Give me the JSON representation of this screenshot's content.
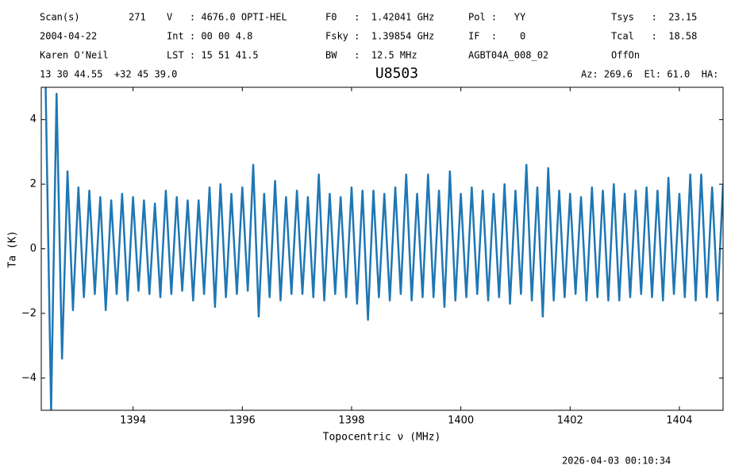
{
  "header": {
    "rows": [
      [
        "Scan(s)",
        "271",
        "V   : 4676.0 OPTI-HEL",
        "F0   :  1.42041 GHz",
        "Pol :   YY",
        "Tsys   :  23.15"
      ],
      [
        "2004-04-22",
        "Int : 00 00 4.8",
        "Fsky :  1.39854 GHz",
        "IF  :    0",
        "Tcal   :  18.58"
      ],
      [
        "Karen O'Neil",
        "LST : 15 51 41.5",
        "BW   :  12.5 MHz",
        "AGBT04A_008_02",
        "OffOn"
      ],
      [
        "13 30 44.55  +32 45 39.0",
        "Az: 269.6  El: 61.0  HA:"
      ]
    ],
    "timestamp": "2026-04-03 00:10:34"
  },
  "chart_data": {
    "type": "line",
    "title": "U8503",
    "x_label": "Topocentric ν (MHz)",
    "y_label": "Ta (K)",
    "color": "#1f77b4",
    "xlim": [
      1392.32,
      1404.8
    ],
    "ylim": [
      -5,
      5
    ],
    "xticks": [
      1394,
      1396,
      1398,
      1400,
      1402,
      1404
    ],
    "yticks": [
      {
        "value": -4,
        "label": "−4"
      },
      {
        "value": -2,
        "label": "−2"
      },
      0,
      2,
      4
    ],
    "x": [
      1392.4,
      1392.5,
      1392.6,
      1392.7,
      1392.8,
      1392.9,
      1393.0,
      1393.1,
      1393.2,
      1393.3,
      1393.4,
      1393.5,
      1393.6,
      1393.7,
      1393.8,
      1393.9,
      1394.0,
      1394.1,
      1394.2,
      1394.3,
      1394.4,
      1394.5,
      1394.6,
      1394.7,
      1394.8,
      1394.9,
      1395.0,
      1395.1,
      1395.2,
      1395.3,
      1395.4,
      1395.5,
      1395.6,
      1395.7,
      1395.8,
      1395.9,
      1396.0,
      1396.1,
      1396.2,
      1396.3,
      1396.4,
      1396.5,
      1396.6,
      1396.7,
      1396.8,
      1396.9,
      1397.0,
      1397.1,
      1397.2,
      1397.3,
      1397.4,
      1397.5,
      1397.6,
      1397.7,
      1397.8,
      1397.9,
      1398.0,
      1398.1,
      1398.2,
      1398.3,
      1398.4,
      1398.5,
      1398.6,
      1398.7,
      1398.8,
      1398.9,
      1399.0,
      1399.1,
      1399.2,
      1399.3,
      1399.4,
      1399.5,
      1399.6,
      1399.7,
      1399.8,
      1399.9,
      1400.0,
      1400.1,
      1400.2,
      1400.3,
      1400.4,
      1400.5,
      1400.6,
      1400.7,
      1400.8,
      1400.9,
      1401.0,
      1401.1,
      1401.2,
      1401.3,
      1401.4,
      1401.5,
      1401.6,
      1401.7,
      1401.8,
      1401.9,
      1402.0,
      1402.1,
      1402.2,
      1402.3,
      1402.4,
      1402.5,
      1402.6,
      1402.7,
      1402.8,
      1402.9,
      1403.0,
      1403.1,
      1403.2,
      1403.3,
      1403.4,
      1403.5,
      1403.6,
      1403.7,
      1403.8,
      1403.9,
      1404.0,
      1404.1,
      1404.2,
      1404.3,
      1404.4,
      1404.5,
      1404.6,
      1404.7,
      1404.8
    ],
    "values": [
      5,
      -5,
      4.8,
      -3.4,
      2.4,
      -1.9,
      1.9,
      -1.5,
      1.8,
      -1.4,
      1.6,
      -1.9,
      1.5,
      -1.4,
      1.7,
      -1.6,
      1.6,
      -1.3,
      1.5,
      -1.4,
      1.4,
      -1.5,
      1.8,
      -1.4,
      1.6,
      -1.3,
      1.5,
      -1.6,
      1.5,
      -1.4,
      1.9,
      -1.8,
      2.0,
      -1.5,
      1.7,
      -1.4,
      1.9,
      -1.3,
      2.6,
      -2.1,
      1.7,
      -1.5,
      2.1,
      -1.6,
      1.6,
      -1.4,
      1.8,
      -1.4,
      1.6,
      -1.5,
      2.3,
      -1.6,
      1.7,
      -1.4,
      1.6,
      -1.5,
      1.9,
      -1.7,
      1.8,
      -2.2,
      1.8,
      -1.5,
      1.7,
      -1.6,
      1.9,
      -1.4,
      2.3,
      -1.6,
      1.7,
      -1.5,
      2.3,
      -1.5,
      1.8,
      -1.8,
      2.4,
      -1.6,
      1.7,
      -1.5,
      1.9,
      -1.4,
      1.8,
      -1.6,
      1.7,
      -1.5,
      2.0,
      -1.7,
      1.8,
      -1.4,
      2.6,
      -1.6,
      1.9,
      -2.1,
      2.5,
      -1.6,
      1.8,
      -1.5,
      1.7,
      -1.4,
      1.6,
      -1.6,
      1.9,
      -1.5,
      1.8,
      -1.6,
      2.0,
      -1.6,
      1.7,
      -1.5,
      1.8,
      -1.4,
      1.9,
      -1.5,
      1.8,
      -1.6,
      2.2,
      -1.4,
      1.7,
      -1.5,
      2.3,
      -1.6,
      2.3,
      -1.5,
      1.9,
      -1.6,
      2.0
    ]
  }
}
